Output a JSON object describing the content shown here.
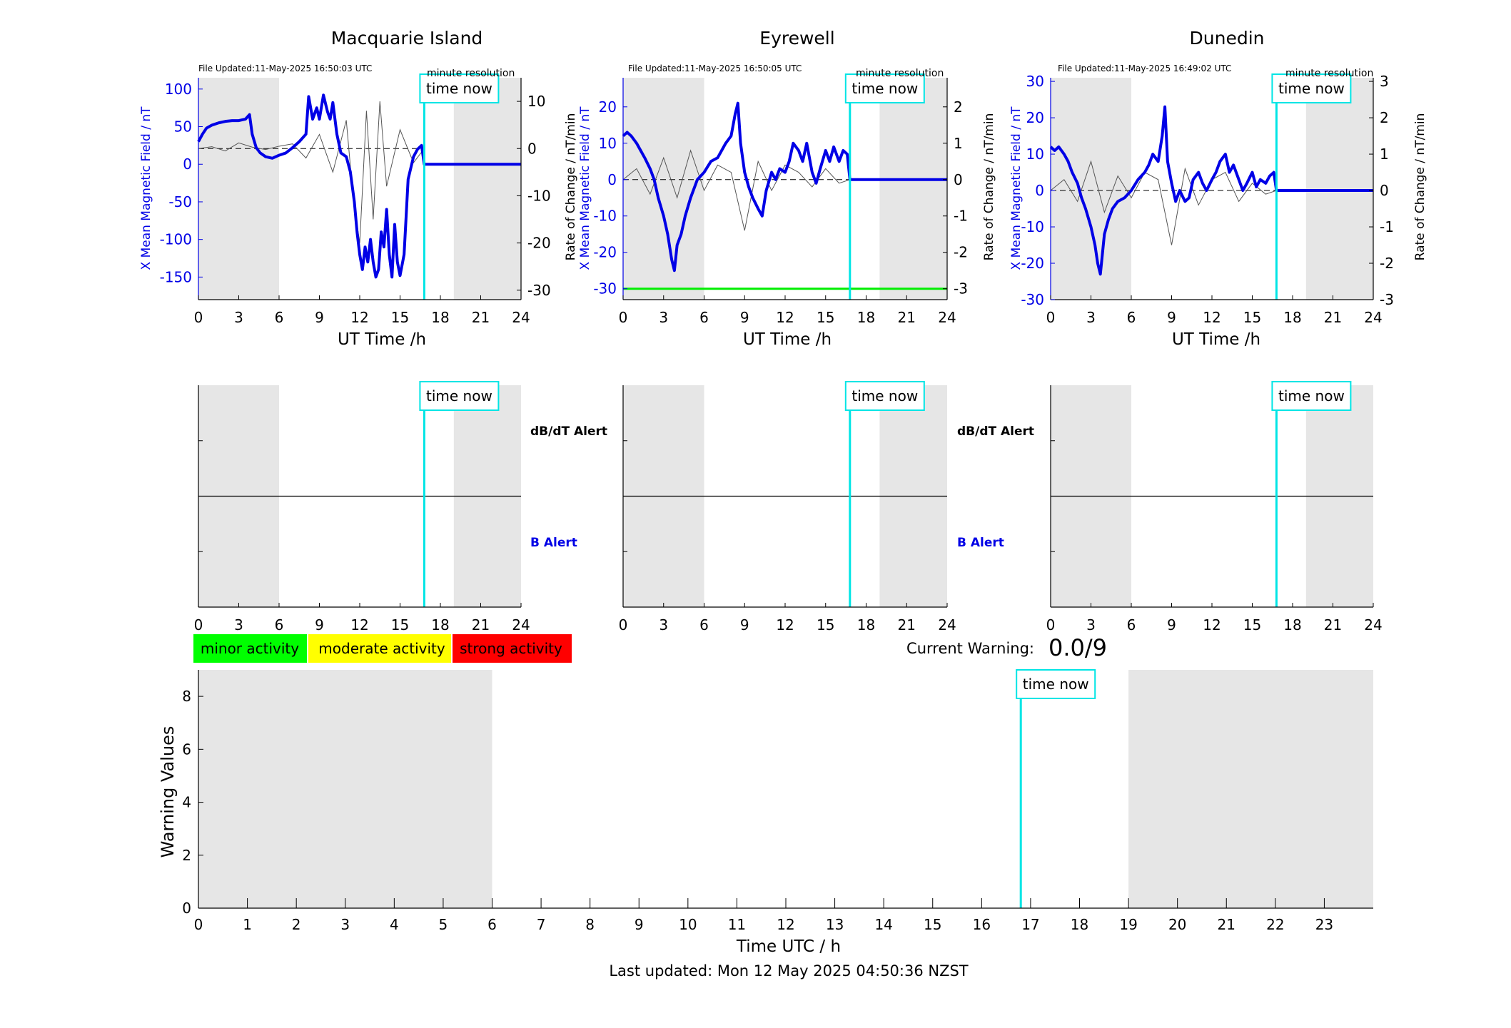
{
  "colors": {
    "field": "#0000e6",
    "rate": "#555555",
    "time_now": "#00e5e5",
    "night_shade": "#e6e6e6",
    "minor": "#00ff00",
    "moderate": "#ffff00",
    "strong": "#ff0000",
    "threshold": "#00ee00"
  },
  "stations": [
    {
      "name": "Macquarie Island",
      "file_updated": "File Updated:11-May-2025 16:50:03 UTC",
      "resolution_label": "minute resolution",
      "time_now_label": "time now",
      "left_axis_label": "X Mean Magnetic Field / nT",
      "right_axis_label": "Rate of Change / nT/min",
      "x_axis_label": "UT Time /h",
      "dbdt_alert_label": "dB/dT Alert",
      "b_alert_label": "B Alert"
    },
    {
      "name": "Eyrewell",
      "file_updated": "File Updated:11-May-2025 16:50:05 UTC",
      "resolution_label": "minute resolution",
      "time_now_label": "time now",
      "left_axis_label": "X Mean Magnetic Field / nT",
      "right_axis_label": "Rate of Change / nT/min",
      "x_axis_label": "UT Time /h",
      "dbdt_alert_label": "dB/dT Alert",
      "b_alert_label": "B Alert"
    },
    {
      "name": "Dunedin",
      "file_updated": "File Updated:11-May-2025 16:49:02 UTC",
      "resolution_label": "minute resolution",
      "time_now_label": "time now",
      "left_axis_label": "X Mean Magnetic Field / nT",
      "right_axis_label": "Rate of Change / nT/min",
      "x_axis_label": "UT Time /h",
      "dbdt_alert_label": "dB/dT Alert",
      "b_alert_label": "B Alert"
    }
  ],
  "legend": {
    "minor": "minor activity",
    "moderate": "moderate activity",
    "strong": "strong activity"
  },
  "current_warning": {
    "label": "Current Warning:",
    "value": "0.0/9"
  },
  "warning_chart": {
    "time_now_label": "time now",
    "ylabel": "Warning Values",
    "xlabel": "Time UTC / h"
  },
  "footer": {
    "last_updated": "Last updated: Mon 12 May 2025 04:50:36 NZST"
  },
  "chart_data": [
    {
      "type": "line",
      "station": "Macquarie Island",
      "xlim": [
        0,
        24
      ],
      "xticks": [
        0,
        3,
        6,
        9,
        12,
        15,
        18,
        21,
        24
      ],
      "left_ylim": [
        -180,
        115
      ],
      "left_yticks": [
        -150,
        -100,
        -50,
        0,
        50,
        100
      ],
      "right_ylim": [
        -32,
        15
      ],
      "right_yticks": [
        -30,
        -20,
        -10,
        0,
        10
      ],
      "night_shade": [
        [
          0,
          6
        ],
        [
          19,
          24
        ]
      ],
      "time_now": 16.8,
      "series": [
        {
          "x": [
            0,
            0.3,
            0.6,
            1,
            1.5,
            2,
            2.5,
            3,
            3.5,
            3.8,
            4,
            4.3,
            4.6,
            5,
            5.5,
            6,
            6.5,
            7,
            7.5,
            8,
            8.2,
            8.5,
            8.8,
            9,
            9.3,
            9.6,
            9.8,
            10,
            10.3,
            10.6,
            11,
            11.3,
            11.6,
            11.8,
            12,
            12.2,
            12.4,
            12.6,
            12.8,
            13,
            13.2,
            13.4,
            13.6,
            13.8,
            14,
            14.2,
            14.4,
            14.6,
            14.8,
            15,
            15.3,
            15.6,
            16,
            16.3,
            16.6,
            16.8,
            17,
            18,
            20,
            22,
            24
          ],
          "y": [
            30,
            40,
            48,
            52,
            55,
            57,
            58,
            58,
            60,
            66,
            40,
            22,
            15,
            10,
            8,
            12,
            15,
            22,
            30,
            40,
            90,
            60,
            75,
            60,
            92,
            70,
            60,
            82,
            40,
            15,
            10,
            -10,
            -50,
            -90,
            -120,
            -140,
            -110,
            -130,
            -100,
            -130,
            -150,
            -140,
            -90,
            -110,
            -60,
            -120,
            -150,
            -80,
            -130,
            -148,
            -120,
            -20,
            10,
            20,
            25,
            0,
            0,
            0,
            0,
            0,
            0
          ]
        },
        {
          "x": [
            0,
            1,
            2,
            3,
            4,
            5,
            6,
            7,
            8,
            9,
            10,
            11,
            11.5,
            12,
            12.5,
            13,
            13.5,
            14,
            15,
            16,
            16.8
          ],
          "y": [
            0,
            0.4,
            -0.5,
            1.2,
            0.3,
            -0.2,
            0.5,
            1,
            -2,
            3,
            -5,
            6,
            -10,
            -20,
            8,
            -15,
            10,
            -8,
            4,
            -3,
            0
          ]
        }
      ]
    },
    {
      "type": "line",
      "station": "Eyrewell",
      "xlim": [
        0,
        24
      ],
      "xticks": [
        0,
        3,
        6,
        9,
        12,
        15,
        18,
        21,
        24
      ],
      "left_ylim": [
        -33,
        28
      ],
      "left_yticks": [
        -30,
        -20,
        -10,
        0,
        10,
        20
      ],
      "right_ylim": [
        -3.3,
        2.8
      ],
      "right_yticks": [
        -3,
        -2,
        -1,
        0,
        1,
        2
      ],
      "threshold": -30,
      "night_shade": [
        [
          0,
          6
        ],
        [
          19,
          24
        ]
      ],
      "time_now": 16.8,
      "series": [
        {
          "x": [
            0,
            0.3,
            0.6,
            1,
            1.3,
            1.6,
            2,
            2.3,
            2.6,
            3,
            3.3,
            3.6,
            3.8,
            4,
            4.3,
            4.6,
            5,
            5.5,
            6,
            6.5,
            7,
            7.3,
            7.6,
            8,
            8.3,
            8.5,
            8.7,
            9,
            9.3,
            9.6,
            10,
            10.3,
            10.6,
            11,
            11.3,
            11.6,
            12,
            12.3,
            12.6,
            13,
            13.3,
            13.6,
            14,
            14.3,
            14.6,
            15,
            15.3,
            15.6,
            16,
            16.3,
            16.6,
            16.8,
            17,
            20,
            24
          ],
          "y": [
            12,
            13,
            12,
            10,
            8,
            6,
            3,
            0,
            -5,
            -10,
            -15,
            -22,
            -25,
            -18,
            -15,
            -10,
            -5,
            0,
            2,
            5,
            6,
            8,
            10,
            12,
            18,
            21,
            10,
            2,
            -2,
            -5,
            -8,
            -10,
            -3,
            2,
            0,
            3,
            2,
            5,
            10,
            8,
            5,
            10,
            2,
            -1,
            3,
            8,
            5,
            9,
            5,
            8,
            7,
            0,
            0,
            0,
            0
          ]
        },
        {
          "x": [
            0,
            1,
            2,
            3,
            4,
            5,
            6,
            7,
            8,
            9,
            10,
            11,
            12,
            13,
            14,
            15,
            16,
            16.8
          ],
          "y": [
            0,
            0.3,
            -0.4,
            0.6,
            -0.5,
            0.8,
            -0.3,
            0.4,
            0.2,
            -1.4,
            0.5,
            -0.3,
            0.4,
            0.2,
            -0.2,
            0.3,
            -0.1,
            0
          ]
        }
      ]
    },
    {
      "type": "line",
      "station": "Dunedin",
      "xlim": [
        0,
        24
      ],
      "xticks": [
        0,
        3,
        6,
        9,
        12,
        15,
        18,
        21,
        24
      ],
      "left_ylim": [
        -30,
        31
      ],
      "left_yticks": [
        -30,
        -20,
        -10,
        0,
        10,
        20,
        30
      ],
      "right_ylim": [
        -3,
        3.1
      ],
      "right_yticks": [
        -3,
        -2,
        -1,
        0,
        1,
        2,
        3
      ],
      "night_shade": [
        [
          0,
          6
        ],
        [
          19,
          24
        ]
      ],
      "time_now": 16.8,
      "series": [
        {
          "x": [
            0,
            0.3,
            0.6,
            1,
            1.3,
            1.6,
            2,
            2.3,
            2.6,
            3,
            3.3,
            3.5,
            3.7,
            4,
            4.3,
            4.6,
            5,
            5.5,
            6,
            6.5,
            7,
            7.3,
            7.6,
            8,
            8.3,
            8.5,
            8.7,
            9,
            9.3,
            9.6,
            10,
            10.3,
            10.6,
            11,
            11.3,
            11.6,
            12,
            12.3,
            12.6,
            13,
            13.3,
            13.6,
            14,
            14.3,
            14.6,
            15,
            15.3,
            15.6,
            16,
            16.3,
            16.6,
            16.8,
            17,
            20,
            24
          ],
          "y": [
            12,
            11,
            12,
            10,
            8,
            5,
            2,
            -2,
            -5,
            -10,
            -15,
            -20,
            -23,
            -12,
            -8,
            -5,
            -3,
            -2,
            0,
            3,
            5,
            7,
            10,
            8,
            15,
            23,
            8,
            2,
            -3,
            0,
            -3,
            -2,
            3,
            5,
            2,
            0,
            3,
            5,
            8,
            10,
            5,
            7,
            3,
            0,
            2,
            5,
            1,
            3,
            2,
            4,
            5,
            0,
            0,
            0,
            0
          ]
        },
        {
          "x": [
            0,
            1,
            2,
            3,
            4,
            5,
            6,
            7,
            8,
            9,
            10,
            11,
            12,
            13,
            14,
            15,
            16,
            16.8
          ],
          "y": [
            0,
            0.3,
            -0.3,
            0.8,
            -0.6,
            0.4,
            -0.2,
            0.5,
            0.3,
            -1.5,
            0.6,
            -0.4,
            0.3,
            0.5,
            -0.3,
            0.2,
            -0.1,
            0
          ]
        }
      ]
    },
    {
      "type": "bar",
      "title": "Warning Values",
      "xlim": [
        0,
        24
      ],
      "xticks": [
        0,
        1,
        2,
        3,
        4,
        5,
        6,
        7,
        8,
        9,
        10,
        11,
        12,
        13,
        14,
        15,
        16,
        17,
        18,
        19,
        20,
        21,
        22,
        23
      ],
      "ylim": [
        0,
        9
      ],
      "yticks": [
        0,
        2,
        4,
        6,
        8
      ],
      "night_shade": [
        [
          0,
          6
        ],
        [
          19,
          24
        ]
      ],
      "time_now": 16.8,
      "values": []
    }
  ]
}
